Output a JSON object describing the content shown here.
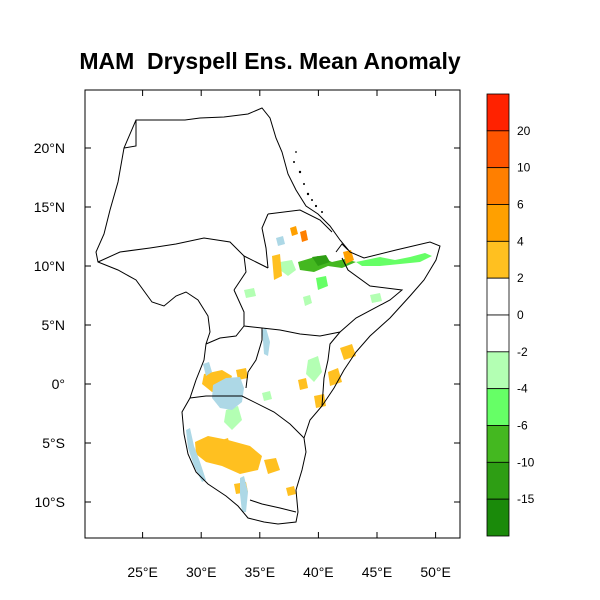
{
  "title": "MAM  Dryspell Ens. Mean Anomaly",
  "map": {
    "lon_range": [
      21,
      53
    ],
    "lat_range": [
      -13.5,
      24.5
    ],
    "x_ticks": [
      {
        "lon": 25,
        "label": "25°E"
      },
      {
        "lon": 30,
        "label": "30°E"
      },
      {
        "lon": 35,
        "label": "35°E"
      },
      {
        "lon": 40,
        "label": "40°E"
      },
      {
        "lon": 45,
        "label": "45°E"
      },
      {
        "lon": 50,
        "label": "50°E"
      }
    ],
    "y_ticks": [
      {
        "lat": 20,
        "label": "20°N"
      },
      {
        "lat": 15,
        "label": "15°N"
      },
      {
        "lat": 10,
        "label": "10°N"
      },
      {
        "lat": 5,
        "label": "5°N"
      },
      {
        "lat": 0,
        "label": "0°"
      },
      {
        "lat": -5,
        "label": "5°S"
      },
      {
        "lat": -10,
        "label": "10°S"
      }
    ],
    "lake_color": "#add8e6"
  },
  "colorbar": {
    "labels": [
      "20",
      "10",
      "6",
      "4",
      "2",
      "0",
      "-2",
      "-4",
      "-6",
      "-10",
      "-15"
    ],
    "colors": [
      "#ff2200",
      "#ff5500",
      "#ff7f00",
      "#ffa000",
      "#ffc020",
      "#ffffff",
      "#ffffff",
      "#b3ffb3",
      "#66ff66",
      "#44b820",
      "#2e9e14",
      "#1a8a0a"
    ]
  }
}
